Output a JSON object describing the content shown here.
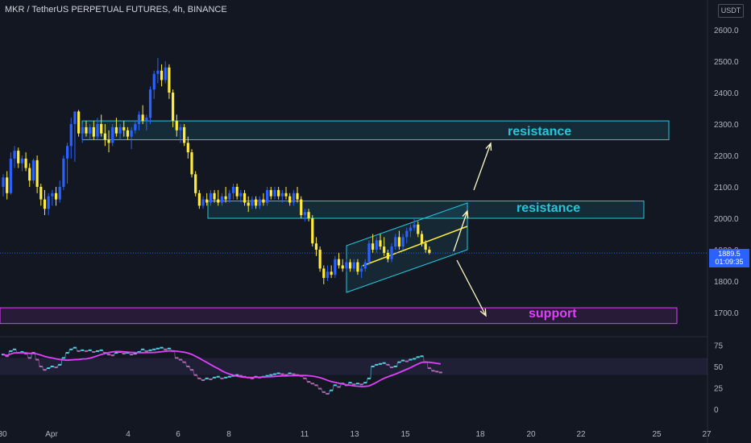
{
  "header": {
    "title": "MKR / TetherUS PERPETUAL FUTURES, 4h, BINANCE",
    "currency": "USDT"
  },
  "price_badge": {
    "price": "1889.5",
    "countdown": "01:09:35"
  },
  "annotations": {
    "resistance_upper": "resistance",
    "resistance_lower": "resistance",
    "support": "support"
  },
  "colors": {
    "background": "#131722",
    "bullish": "#2962ff",
    "bearish": "#ffeb3b",
    "zone_cyan": "#26c6da",
    "zone_magenta": "#e040fb",
    "rsi_ma": "#e040fb",
    "text": "#b2b5be"
  },
  "chart_data": [
    {
      "type": "candlestick",
      "title": "MKR / TetherUS PERPETUAL FUTURES, 4h, BINANCE",
      "x_ticks": [
        "30",
        "Apr",
        "4",
        "6",
        "8",
        "11",
        "13",
        "15",
        "18",
        "20",
        "22",
        "25",
        "27"
      ],
      "y_ticks": [
        1700.0,
        1800.0,
        1900.0,
        2000.0,
        2100.0,
        2200.0,
        2300.0,
        2400.0,
        2500.0,
        2600.0
      ],
      "ylim": [
        1630,
        2660
      ],
      "last_price": 1889.5,
      "candles": [
        {
          "o": 2100,
          "h": 2140,
          "l": 2070,
          "c": 2130
        },
        {
          "o": 2130,
          "h": 2150,
          "l": 2060,
          "c": 2080
        },
        {
          "o": 2080,
          "h": 2210,
          "l": 2075,
          "c": 2190
        },
        {
          "o": 2190,
          "h": 2230,
          "l": 2160,
          "c": 2215
        },
        {
          "o": 2215,
          "h": 2225,
          "l": 2160,
          "c": 2175
        },
        {
          "o": 2175,
          "h": 2200,
          "l": 2150,
          "c": 2190
        },
        {
          "o": 2190,
          "h": 2210,
          "l": 2150,
          "c": 2160
        },
        {
          "o": 2160,
          "h": 2175,
          "l": 2100,
          "c": 2120
        },
        {
          "o": 2120,
          "h": 2190,
          "l": 2110,
          "c": 2185
        },
        {
          "o": 2185,
          "h": 2200,
          "l": 2080,
          "c": 2100
        },
        {
          "o": 2100,
          "h": 2110,
          "l": 2040,
          "c": 2060
        },
        {
          "o": 2060,
          "h": 2090,
          "l": 2010,
          "c": 2030
        },
        {
          "o": 2030,
          "h": 2080,
          "l": 2010,
          "c": 2070
        },
        {
          "o": 2070,
          "h": 2090,
          "l": 2040,
          "c": 2080
        },
        {
          "o": 2080,
          "h": 2100,
          "l": 2040,
          "c": 2060
        },
        {
          "o": 2060,
          "h": 2120,
          "l": 2050,
          "c": 2100
        },
        {
          "o": 2100,
          "h": 2200,
          "l": 2090,
          "c": 2190
        },
        {
          "o": 2190,
          "h": 2240,
          "l": 2110,
          "c": 2230
        },
        {
          "o": 2230,
          "h": 2320,
          "l": 2190,
          "c": 2300
        },
        {
          "o": 2300,
          "h": 2340,
          "l": 2180,
          "c": 2340
        },
        {
          "o": 2340,
          "h": 2345,
          "l": 2260,
          "c": 2270
        },
        {
          "o": 2270,
          "h": 2300,
          "l": 2240,
          "c": 2290
        },
        {
          "o": 2290,
          "h": 2310,
          "l": 2260,
          "c": 2270
        },
        {
          "o": 2270,
          "h": 2300,
          "l": 2250,
          "c": 2290
        },
        {
          "o": 2290,
          "h": 2310,
          "l": 2250,
          "c": 2260
        },
        {
          "o": 2260,
          "h": 2320,
          "l": 2250,
          "c": 2300
        },
        {
          "o": 2300,
          "h": 2330,
          "l": 2260,
          "c": 2270
        },
        {
          "o": 2270,
          "h": 2300,
          "l": 2230,
          "c": 2250
        },
        {
          "o": 2250,
          "h": 2280,
          "l": 2210,
          "c": 2240
        },
        {
          "o": 2240,
          "h": 2300,
          "l": 2230,
          "c": 2290
        },
        {
          "o": 2290,
          "h": 2320,
          "l": 2260,
          "c": 2270
        },
        {
          "o": 2270,
          "h": 2300,
          "l": 2250,
          "c": 2290
        },
        {
          "o": 2290,
          "h": 2310,
          "l": 2260,
          "c": 2280
        },
        {
          "o": 2280,
          "h": 2290,
          "l": 2250,
          "c": 2260
        },
        {
          "o": 2260,
          "h": 2290,
          "l": 2220,
          "c": 2280
        },
        {
          "o": 2280,
          "h": 2310,
          "l": 2270,
          "c": 2300
        },
        {
          "o": 2300,
          "h": 2340,
          "l": 2280,
          "c": 2330
        },
        {
          "o": 2330,
          "h": 2360,
          "l": 2300,
          "c": 2310
        },
        {
          "o": 2310,
          "h": 2330,
          "l": 2280,
          "c": 2320
        },
        {
          "o": 2320,
          "h": 2420,
          "l": 2300,
          "c": 2410
        },
        {
          "o": 2410,
          "h": 2470,
          "l": 2380,
          "c": 2460
        },
        {
          "o": 2460,
          "h": 2510,
          "l": 2430,
          "c": 2470
        },
        {
          "o": 2470,
          "h": 2490,
          "l": 2420,
          "c": 2440
        },
        {
          "o": 2440,
          "h": 2500,
          "l": 2430,
          "c": 2480
        },
        {
          "o": 2480,
          "h": 2490,
          "l": 2380,
          "c": 2400
        },
        {
          "o": 2400,
          "h": 2410,
          "l": 2290,
          "c": 2310
        },
        {
          "o": 2310,
          "h": 2330,
          "l": 2260,
          "c": 2280
        },
        {
          "o": 2280,
          "h": 2300,
          "l": 2240,
          "c": 2290
        },
        {
          "o": 2290,
          "h": 2300,
          "l": 2230,
          "c": 2240
        },
        {
          "o": 2240,
          "h": 2260,
          "l": 2190,
          "c": 2210
        },
        {
          "o": 2210,
          "h": 2220,
          "l": 2130,
          "c": 2140
        },
        {
          "o": 2140,
          "h": 2150,
          "l": 2070,
          "c": 2080
        },
        {
          "o": 2080,
          "h": 2090,
          "l": 2030,
          "c": 2040
        },
        {
          "o": 2040,
          "h": 2070,
          "l": 2030,
          "c": 2060
        },
        {
          "o": 2060,
          "h": 2080,
          "l": 2040,
          "c": 2050
        },
        {
          "o": 2050,
          "h": 2090,
          "l": 2040,
          "c": 2080
        },
        {
          "o": 2080,
          "h": 2090,
          "l": 2050,
          "c": 2060
        },
        {
          "o": 2060,
          "h": 2090,
          "l": 2040,
          "c": 2050
        },
        {
          "o": 2050,
          "h": 2080,
          "l": 2040,
          "c": 2070
        },
        {
          "o": 2070,
          "h": 2100,
          "l": 2050,
          "c": 2060
        },
        {
          "o": 2060,
          "h": 2090,
          "l": 2050,
          "c": 2080
        },
        {
          "o": 2080,
          "h": 2110,
          "l": 2060,
          "c": 2100
        },
        {
          "o": 2100,
          "h": 2110,
          "l": 2060,
          "c": 2070
        },
        {
          "o": 2070,
          "h": 2090,
          "l": 2050,
          "c": 2080
        },
        {
          "o": 2080,
          "h": 2090,
          "l": 2040,
          "c": 2050
        },
        {
          "o": 2050,
          "h": 2070,
          "l": 2020,
          "c": 2040
        },
        {
          "o": 2040,
          "h": 2070,
          "l": 2030,
          "c": 2060
        },
        {
          "o": 2060,
          "h": 2070,
          "l": 2030,
          "c": 2040
        },
        {
          "o": 2040,
          "h": 2070,
          "l": 2030,
          "c": 2060
        },
        {
          "o": 2060,
          "h": 2080,
          "l": 2040,
          "c": 2050
        },
        {
          "o": 2050,
          "h": 2100,
          "l": 2040,
          "c": 2090
        },
        {
          "o": 2090,
          "h": 2100,
          "l": 2060,
          "c": 2070
        },
        {
          "o": 2070,
          "h": 2100,
          "l": 2060,
          "c": 2090
        },
        {
          "o": 2090,
          "h": 2100,
          "l": 2060,
          "c": 2070
        },
        {
          "o": 2070,
          "h": 2090,
          "l": 2050,
          "c": 2080
        },
        {
          "o": 2080,
          "h": 2100,
          "l": 2060,
          "c": 2070
        },
        {
          "o": 2070,
          "h": 2080,
          "l": 2040,
          "c": 2050
        },
        {
          "o": 2050,
          "h": 2090,
          "l": 2040,
          "c": 2080
        },
        {
          "o": 2080,
          "h": 2100,
          "l": 2050,
          "c": 2060
        },
        {
          "o": 2060,
          "h": 2070,
          "l": 2000,
          "c": 2010
        },
        {
          "o": 2010,
          "h": 2030,
          "l": 1990,
          "c": 2020
        },
        {
          "o": 2020,
          "h": 2030,
          "l": 1990,
          "c": 2000
        },
        {
          "o": 2000,
          "h": 2010,
          "l": 1910,
          "c": 1920
        },
        {
          "o": 1920,
          "h": 1940,
          "l": 1880,
          "c": 1900
        },
        {
          "o": 1900,
          "h": 1910,
          "l": 1830,
          "c": 1840
        },
        {
          "o": 1840,
          "h": 1850,
          "l": 1790,
          "c": 1810
        },
        {
          "o": 1810,
          "h": 1850,
          "l": 1800,
          "c": 1830
        },
        {
          "o": 1830,
          "h": 1850,
          "l": 1810,
          "c": 1820
        },
        {
          "o": 1820,
          "h": 1880,
          "l": 1810,
          "c": 1870
        },
        {
          "o": 1870,
          "h": 1890,
          "l": 1840,
          "c": 1850
        },
        {
          "o": 1850,
          "h": 1870,
          "l": 1830,
          "c": 1840
        },
        {
          "o": 1840,
          "h": 1870,
          "l": 1830,
          "c": 1860
        },
        {
          "o": 1860,
          "h": 1870,
          "l": 1830,
          "c": 1840
        },
        {
          "o": 1840,
          "h": 1870,
          "l": 1830,
          "c": 1860
        },
        {
          "o": 1860,
          "h": 1870,
          "l": 1820,
          "c": 1830
        },
        {
          "o": 1830,
          "h": 1850,
          "l": 1810,
          "c": 1840
        },
        {
          "o": 1840,
          "h": 1870,
          "l": 1830,
          "c": 1860
        },
        {
          "o": 1860,
          "h": 1930,
          "l": 1850,
          "c": 1920
        },
        {
          "o": 1920,
          "h": 1950,
          "l": 1890,
          "c": 1900
        },
        {
          "o": 1900,
          "h": 1940,
          "l": 1890,
          "c": 1930
        },
        {
          "o": 1930,
          "h": 1950,
          "l": 1900,
          "c": 1910
        },
        {
          "o": 1910,
          "h": 1940,
          "l": 1880,
          "c": 1890
        },
        {
          "o": 1890,
          "h": 1900,
          "l": 1860,
          "c": 1870
        },
        {
          "o": 1870,
          "h": 1920,
          "l": 1860,
          "c": 1910
        },
        {
          "o": 1910,
          "h": 1950,
          "l": 1900,
          "c": 1940
        },
        {
          "o": 1940,
          "h": 1960,
          "l": 1900,
          "c": 1910
        },
        {
          "o": 1910,
          "h": 1950,
          "l": 1900,
          "c": 1940
        },
        {
          "o": 1940,
          "h": 1970,
          "l": 1920,
          "c": 1960
        },
        {
          "o": 1960,
          "h": 1980,
          "l": 1940,
          "c": 1970
        },
        {
          "o": 1970,
          "h": 2000,
          "l": 1960,
          "c": 1980
        },
        {
          "o": 1980,
          "h": 1990,
          "l": 1940,
          "c": 1950
        },
        {
          "o": 1950,
          "h": 1960,
          "l": 1910,
          "c": 1920
        },
        {
          "o": 1920,
          "h": 1930,
          "l": 1890,
          "c": 1900
        },
        {
          "o": 1900,
          "h": 1910,
          "l": 1885,
          "c": 1890
        }
      ]
    },
    {
      "type": "line",
      "title": "",
      "y_ticks": [
        75,
        50,
        25,
        0.0
      ],
      "ylim": [
        -10,
        82
      ],
      "band": [
        40,
        60
      ],
      "series": [
        {
          "values": [
            64,
            62,
            68,
            70,
            66,
            67,
            65,
            60,
            66,
            58,
            50,
            46,
            48,
            50,
            49,
            52,
            60,
            66,
            70,
            72,
            68,
            69,
            68,
            69,
            67,
            68,
            69,
            66,
            64,
            63,
            66,
            67,
            65,
            66,
            64,
            65,
            67,
            70,
            68,
            69,
            70,
            71,
            72,
            70,
            71,
            68,
            60,
            58,
            55,
            50,
            46,
            40,
            36,
            34,
            36,
            35,
            37,
            38,
            36,
            37,
            38,
            39,
            40,
            39,
            38,
            37,
            36,
            38,
            37,
            38,
            39,
            40,
            41,
            42,
            41,
            40,
            42,
            41,
            40,
            39,
            36,
            32,
            30,
            28,
            24,
            20,
            18,
            22,
            28,
            26,
            30,
            28,
            31,
            29,
            30,
            29,
            31,
            36,
            50,
            52,
            53,
            54,
            52,
            49,
            50,
            55,
            57,
            56,
            58,
            59,
            61,
            62,
            55,
            48,
            45,
            44,
            43
          ]
        }
      ]
    }
  ]
}
